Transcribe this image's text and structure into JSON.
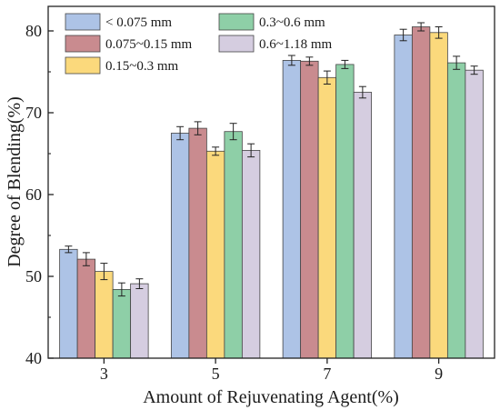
{
  "chart_data": {
    "type": "bar",
    "title": "",
    "xlabel": "Amount of Rejuvenating Agent(%)",
    "ylabel": "Degree of Blending(%)",
    "ylim": [
      40,
      83
    ],
    "yticks": [
      40,
      50,
      60,
      70,
      80
    ],
    "categories": [
      "3",
      "5",
      "7",
      "9"
    ],
    "grid": false,
    "legend_position": "top-left",
    "series": [
      {
        "name": "< 0.075 mm",
        "color": "#adc3e6",
        "values": [
          53.3,
          67.5,
          76.4,
          79.5
        ],
        "errors": [
          0.4,
          0.8,
          0.6,
          0.7
        ]
      },
      {
        "name": "0.075~0.15 mm",
        "color": "#c98b8f",
        "values": [
          52.1,
          68.1,
          76.3,
          80.5
        ],
        "errors": [
          0.8,
          0.8,
          0.5,
          0.5
        ]
      },
      {
        "name": "0.15~0.3 mm",
        "color": "#fbd97c",
        "values": [
          50.6,
          65.3,
          74.3,
          79.8
        ],
        "errors": [
          1.0,
          0.5,
          0.8,
          0.7
        ]
      },
      {
        "name": "0.3~0.6 mm",
        "color": "#8ecfa7",
        "values": [
          48.4,
          67.7,
          75.9,
          76.1
        ],
        "errors": [
          0.8,
          1.0,
          0.5,
          0.8
        ]
      },
      {
        "name": "0.6~1.18 mm",
        "color": "#d5cde0",
        "values": [
          49.1,
          65.4,
          72.5,
          75.2
        ],
        "errors": [
          0.6,
          0.8,
          0.7,
          0.5
        ]
      }
    ]
  }
}
